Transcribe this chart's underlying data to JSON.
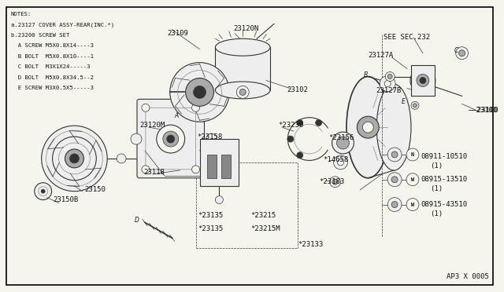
{
  "bg_color": "#f5f5ee",
  "border_color": "#000000",
  "diagram_ref": "AP3 X 0005",
  "notes_lines": [
    "NOTES:",
    "a.23127 COVER ASSY-REAR(INC.*)",
    "b.23200 SCREW SET",
    "  A SCREW M5X0.8X14----3",
    "  B BOLT  M5X0.8X10----1",
    "  C BOLT  M3X1X24-----3",
    "  D BOLT  M5X0.8X34.5--2",
    "  E SCREW M3X0.5X5-----3"
  ],
  "text_color": "#111111",
  "line_color": "#111111",
  "font_size_notes": 5.2,
  "font_size_labels": 6.5,
  "font_size_ref": 6.5
}
